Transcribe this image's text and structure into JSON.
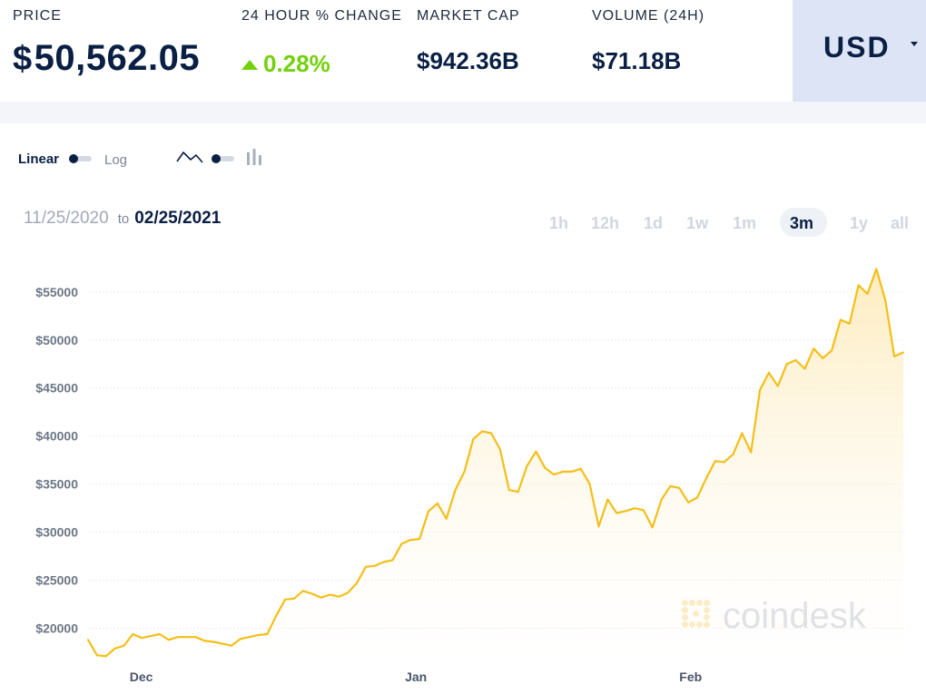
{
  "stats": {
    "price": {
      "label": "PRICE",
      "currency_symbol": "$",
      "value": "50,562.05"
    },
    "change": {
      "label": "24 HOUR % CHANGE",
      "value": "0.28%"
    },
    "market_cap": {
      "label": "MARKET CAP",
      "value": "$942.36B"
    },
    "volume": {
      "label": "VOLUME (24H)",
      "value": "$71.18B"
    }
  },
  "currency_selector": {
    "value": "USD",
    "icon": "caret-down-icon"
  },
  "scale_toggle": {
    "left_label": "Linear",
    "right_label": "Log",
    "selected": "Linear"
  },
  "chart_type_toggle": {
    "options": [
      "line-icon",
      "bar-icon"
    ],
    "selected": "line"
  },
  "date_range": {
    "from": "11/25/2020",
    "to_word": "to",
    "to": "02/25/2021"
  },
  "timeframes": [
    "1h",
    "12h",
    "1d",
    "1w",
    "1m",
    "3m",
    "1y",
    "all"
  ],
  "active_timeframe": "3m",
  "watermark": "coindesk",
  "colors": {
    "line": "#f5be18",
    "accent_up": "#73d10c",
    "brand_navy": "#0a1f44",
    "selector_bg": "#dde4f5"
  },
  "chart_data": {
    "type": "area",
    "x_start": "2020-11-25",
    "x_end": "2021-02-25",
    "x_tick_labels": [
      "Dec",
      "Jan",
      "Feb"
    ],
    "x_tick_dates": [
      "2020-12-01",
      "2021-01-01",
      "2021-02-01"
    ],
    "y_tick_labels": [
      "$20000",
      "$25000",
      "$30000",
      "$35000",
      "$40000",
      "$45000",
      "$50000",
      "$55000"
    ],
    "y_tick_values": [
      20000,
      25000,
      30000,
      35000,
      40000,
      45000,
      50000,
      55000
    ],
    "ylim": [
      16000,
      58000
    ],
    "grid": true,
    "series": [
      {
        "values": [
          18800,
          17200,
          17100,
          17900,
          18200,
          19400,
          19000,
          19200,
          19400,
          18800,
          19100,
          19100,
          19100,
          18700,
          18600,
          18400,
          18200,
          18900,
          19100,
          19300,
          19400,
          21300,
          23000,
          23100,
          23900,
          23600,
          23200,
          23500,
          23300,
          23700,
          24700,
          26400,
          26500,
          26900,
          27100,
          28800,
          29200,
          29300,
          32200,
          33000,
          31400,
          34400,
          36300,
          39700,
          40500,
          40300,
          38600,
          34400,
          34200,
          36900,
          38400,
          36700,
          36000,
          36300,
          36300,
          36600,
          35000,
          30600,
          33400,
          32000,
          32200,
          32500,
          32300,
          30500,
          33400,
          34800,
          34600,
          33100,
          33600,
          35600,
          37400,
          37300,
          38100,
          40300,
          38300,
          44800,
          46600,
          45200,
          47500,
          47900,
          47000,
          49100,
          48100,
          48900,
          52100,
          51700,
          55700,
          54800,
          57400,
          54100,
          48300,
          48700
        ]
      }
    ]
  }
}
